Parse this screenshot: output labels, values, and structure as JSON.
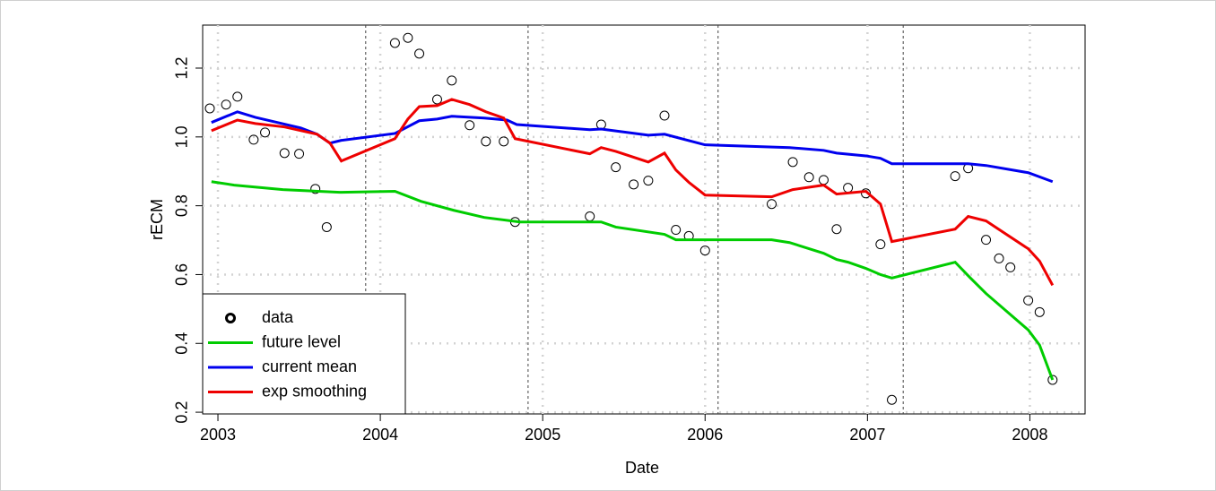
{
  "chart_data": {
    "type": "line",
    "xlabel": "Date",
    "ylabel": "rECM",
    "xlim": [
      2002.906,
      2008.34
    ],
    "ylim": [
      0.195,
      1.325
    ],
    "xticks": [
      2003,
      2004,
      2005,
      2006,
      2007,
      2008
    ],
    "yticks": [
      0.2,
      0.4,
      0.6,
      {
        "value": 0.8,
        "label": "0.8"
      },
      {
        "value": 1,
        "label": "1.0"
      },
      1.2
    ],
    "grid": true,
    "vlines": [
      2003.91,
      2004.91,
      2006.08,
      2007.22
    ],
    "legend": "bottom-left",
    "series": [
      {
        "name": "data",
        "color": "#000000",
        "style": "points",
        "x": [
          2002.95,
          2003.05,
          2003.12,
          2003.22,
          2003.29,
          2003.41,
          2003.5,
          2003.6,
          2003.67,
          2004.09,
          2004.17,
          2004.24,
          2004.35,
          2004.44,
          2004.55,
          2004.65,
          2004.76,
          2004.83,
          2005.29,
          2005.36,
          2005.45,
          2005.56,
          2005.65,
          2005.75,
          2005.82,
          2005.9,
          2006.0,
          2006.41,
          2006.54,
          2006.64,
          2006.73,
          2006.81,
          2006.88,
          2006.99,
          2007.08,
          2007.15,
          2007.54,
          2007.62,
          2007.73,
          2007.81,
          2007.88,
          2007.99,
          2008.06,
          2008.14
        ],
        "values": [
          1.083,
          1.094,
          1.117,
          0.992,
          1.013,
          0.953,
          0.951,
          0.849,
          0.738,
          1.273,
          1.288,
          1.242,
          1.109,
          1.164,
          1.034,
          0.987,
          0.987,
          0.753,
          0.769,
          1.036,
          0.912,
          0.862,
          0.873,
          1.062,
          0.73,
          0.712,
          0.67,
          0.805,
          0.927,
          0.883,
          0.875,
          0.732,
          0.852,
          0.836,
          0.688,
          0.236,
          0.886,
          0.909,
          0.701,
          0.647,
          0.621,
          0.525,
          0.491,
          0.294
        ]
      },
      {
        "name": "future level",
        "color": "#00cc00",
        "style": "line",
        "x": [
          2002.96,
          2003.1,
          2003.4,
          2003.75,
          2004.09,
          2004.25,
          2004.45,
          2004.64,
          2004.86,
          2005.36,
          2005.45,
          2005.75,
          2005.82,
          2006.41,
          2006.52,
          2006.73,
          2006.81,
          2006.88,
          2006.99,
          2007.08,
          2007.15,
          2007.54,
          2007.63,
          2007.73,
          2007.99,
          2008.06,
          2008.14
        ],
        "values": [
          0.87,
          0.86,
          0.847,
          0.839,
          0.842,
          0.813,
          0.787,
          0.766,
          0.753,
          0.753,
          0.738,
          0.717,
          0.701,
          0.701,
          0.693,
          0.662,
          0.644,
          0.636,
          0.618,
          0.6,
          0.59,
          0.636,
          0.592,
          0.545,
          0.439,
          0.395,
          0.294
        ]
      },
      {
        "name": "current mean",
        "color": "#0000ee",
        "style": "line",
        "x": [
          2002.96,
          2003.12,
          2003.23,
          2003.51,
          2003.61,
          2003.69,
          2003.76,
          2004.09,
          2004.24,
          2004.35,
          2004.44,
          2004.64,
          2004.78,
          2004.84,
          2005.29,
          2005.36,
          2005.65,
          2005.75,
          2006.0,
          2006.52,
          2006.73,
          2006.81,
          2006.99,
          2007.08,
          2007.15,
          2007.62,
          2007.73,
          2007.99,
          2008.14
        ],
        "values": [
          1.042,
          1.073,
          1.057,
          1.026,
          1.008,
          0.982,
          0.99,
          1.01,
          1.047,
          1.052,
          1.06,
          1.055,
          1.049,
          1.036,
          1.021,
          1.023,
          1.005,
          1.008,
          0.977,
          0.969,
          0.961,
          0.953,
          0.945,
          0.938,
          0.922,
          0.922,
          0.917,
          0.896,
          0.87
        ]
      },
      {
        "name": "exp smoothing",
        "color": "#ee0000",
        "style": "line",
        "x": [
          2002.96,
          2003.12,
          2003.23,
          2003.41,
          2003.61,
          2003.69,
          2003.76,
          2004.09,
          2004.17,
          2004.24,
          2004.35,
          2004.44,
          2004.55,
          2004.65,
          2004.76,
          2004.83,
          2005.29,
          2005.36,
          2005.45,
          2005.65,
          2005.75,
          2005.82,
          2005.9,
          2006.0,
          2006.41,
          2006.54,
          2006.73,
          2006.81,
          2006.99,
          2007.08,
          2007.15,
          2007.54,
          2007.62,
          2007.73,
          2007.99,
          2008.06,
          2008.14
        ],
        "values": [
          1.018,
          1.049,
          1.039,
          1.029,
          1.008,
          0.982,
          0.93,
          0.995,
          1.052,
          1.088,
          1.091,
          1.109,
          1.094,
          1.073,
          1.055,
          0.995,
          0.951,
          0.969,
          0.958,
          0.927,
          0.953,
          0.904,
          0.868,
          0.831,
          0.826,
          0.847,
          0.86,
          0.834,
          0.842,
          0.805,
          0.696,
          0.732,
          0.769,
          0.756,
          0.675,
          0.639,
          0.569
        ]
      }
    ]
  }
}
